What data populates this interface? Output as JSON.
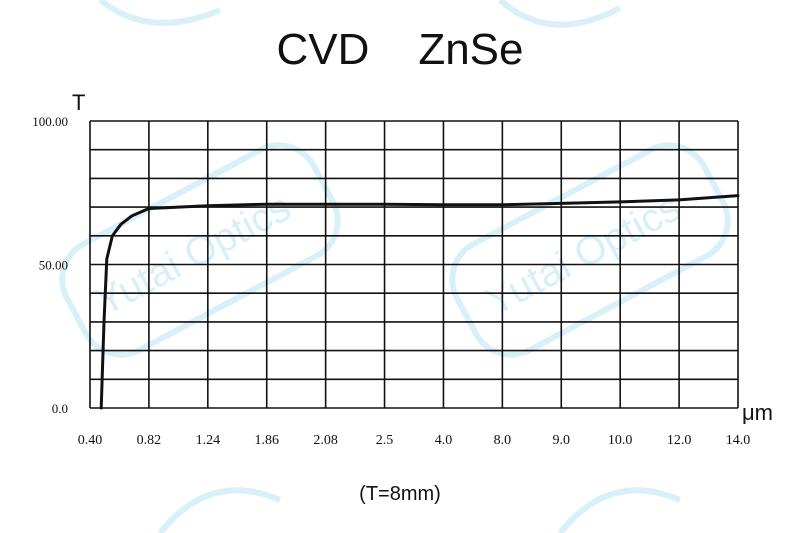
{
  "chart_data": {
    "type": "line",
    "title": "CVD    ZnSe",
    "ylabel": "T",
    "xunit": "μm",
    "note": "(T=8mm)",
    "ylim": [
      0,
      100
    ],
    "y_ticks": [
      {
        "value": 100,
        "label": "100.00"
      },
      {
        "value": 50,
        "label": "50.00"
      },
      {
        "value": 0,
        "label": "0.0"
      }
    ],
    "x_ticks": [
      "0.40",
      "0.82",
      "1.24",
      "1.86",
      "2.08",
      "2.5",
      "4.0",
      "8.0",
      "9.0",
      "10.0",
      "12.0",
      "14.0"
    ],
    "grid": true,
    "series": [
      {
        "x": [
          0.48,
          0.5,
          0.52,
          0.56,
          0.62,
          0.7,
          0.82,
          1.24,
          1.86,
          2.08,
          2.5,
          4.0,
          8.0,
          9.0,
          10.0,
          12.0,
          14.0
        ],
        "y": [
          0,
          30,
          52,
          60,
          64,
          67,
          69.5,
          70.5,
          71,
          71,
          71,
          70.8,
          70.8,
          71.3,
          71.8,
          72.5,
          74
        ]
      }
    ],
    "colors": {
      "line": "#111111",
      "grid": "#111111",
      "watermark": "#a8ddf0"
    }
  },
  "watermark": {
    "text": "Yutai Optics"
  }
}
